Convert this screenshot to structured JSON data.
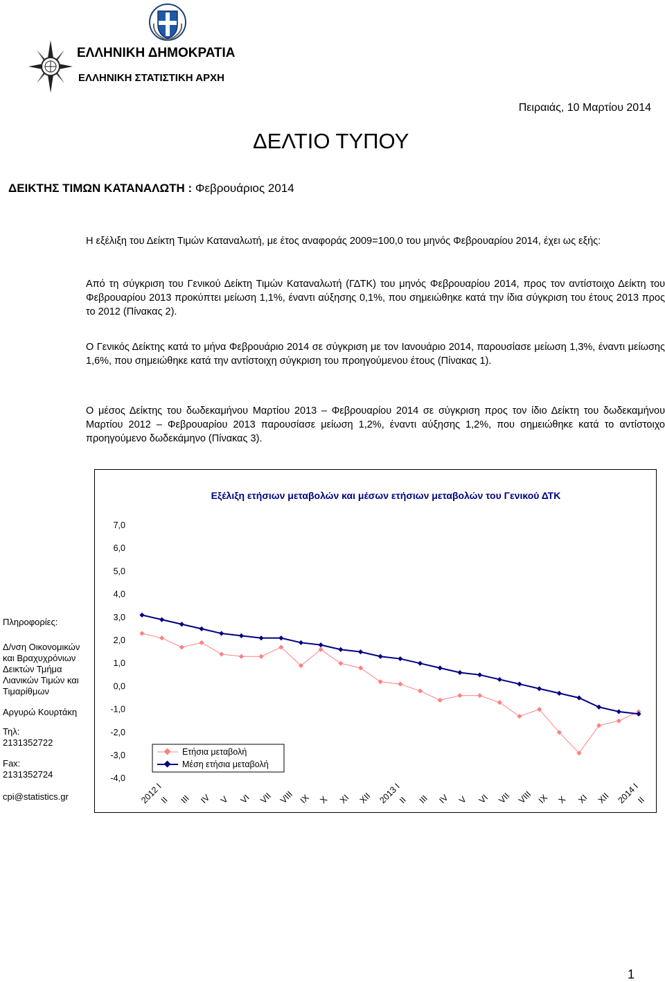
{
  "header": {
    "org_line1": "ΕΛΛΗΝΙΚΗ ΔΗΜΟΚΡΑΤΙΑ",
    "org_line2": "ΕΛΛΗΝΙΚΗ ΣΤΑΤΙΣΤΙΚΗ ΑΡΧΗ",
    "date": "Πειραιάς, 10 Μαρτίου 2014",
    "title": "ΔΕΛΤΙΟ ΤΥΠΟΥ",
    "subtitle_bold": "ΔΕΙΚΤΗΣ ΤΙΜΩΝ ΚΑΤΑΝΑΛΩΤΗ :",
    "subtitle_rest": "Φεβρουάριος 2014"
  },
  "body": {
    "p1": "Η εξέλιξη του Δείκτη Τιμών Καταναλωτή, με έτος αναφοράς 2009=100,0 του μηνός Φεβρουαρίου 2014, έχει ως εξής:",
    "p2": "Από τη σύγκριση του Γενικού Δείκτη Τιμών Καταναλωτή (ΓΔΤΚ) του μηνός Φεβρουαρίου 2014, προς τον αντίστοιχο Δείκτη του Φεβρουαρίου 2013 προκύπτει μείωση 1,1%, έναντι αύξησης 0,1%, που σημειώθηκε κατά την ίδια σύγκριση του έτους 2013 προς το 2012 (Πίνακας 2).",
    "p3": "Ο Γενικός Δείκτης κατά το μήνα Φεβρουάριο 2014 σε σύγκριση με τον Ιανουάριο 2014, παρουσίασε μείωση 1,3%, έναντι μείωσης 1,6%, που σημειώθηκε κατά την αντίστοιχη σύγκριση του προηγούμενου έτους (Πίνακας 1).",
    "p4": "Ο μέσος Δείκτης του δωδεκαμήνου Μαρτίου 2013 – Φεβρουαρίου 2014 σε σύγκριση προς τον ίδιο Δείκτη του δωδεκαμήνου Μαρτίου 2012 – Φεβρουαρίου 2013 παρουσίασε μείωση 1,2%, έναντι αύξησης 1,2%, που σημειώθηκε κατά το αντίστοιχο προηγούμενο δωδεκάμηνο (Πίνακας 3)."
  },
  "sidebar": {
    "info_label": "Πληροφορίες:",
    "department": "Δ/νση Οικονομικών και Βραχυχρόνιων Δεικτών Τμήμα Λιανικών Τιμών και Τιμαρίθμων",
    "contact_name": "Αργυρώ Κουρτάκη",
    "tel_label": "Τηλ:",
    "tel": "2131352722",
    "fax_label": "Fax:",
    "fax": "2131352724",
    "email": "cpi@statistics.gr"
  },
  "page_number": "1",
  "chart_data": {
    "type": "line",
    "title": "Εξέλιξη ετήσιων μεταβολών και μέσων ετήσιων μεταβολών του Γενικού ΔΤΚ",
    "categories": [
      "2012 I",
      "II",
      "III",
      "IV",
      "V",
      "VI",
      "VII",
      "VIII",
      "IX",
      "X",
      "XI",
      "XII",
      "2013 I",
      "II",
      "III",
      "IV",
      "V",
      "VI",
      "VII",
      "VIII",
      "IX",
      "X",
      "XI",
      "XII",
      "2014 I",
      "II"
    ],
    "y_tick_labels": [
      "7,0",
      "6,0",
      "5,0",
      "4,0",
      "3,0",
      "2,0",
      "1,0",
      "0,0",
      "-1,0",
      "-2,0",
      "-3,0",
      "-4,0"
    ],
    "ylim": [
      -4,
      7
    ],
    "legend_position": "bottom-left",
    "series": [
      {
        "name": "Ετήσια μεταβολή",
        "color": "#FF8080",
        "marker": "diamond",
        "values": [
          2.3,
          2.1,
          1.7,
          1.9,
          1.4,
          1.3,
          1.3,
          1.7,
          0.9,
          1.6,
          1.0,
          0.8,
          0.2,
          0.1,
          -0.2,
          -0.6,
          -0.4,
          -0.4,
          -0.7,
          -1.3,
          -1.0,
          -2.0,
          -2.9,
          -1.7,
          -1.5,
          -1.1
        ]
      },
      {
        "name": "Μέση ετήσια μεταβολή",
        "color": "#000080",
        "marker": "diamond",
        "values": [
          3.1,
          2.9,
          2.7,
          2.5,
          2.3,
          2.2,
          2.1,
          2.1,
          1.9,
          1.8,
          1.6,
          1.5,
          1.3,
          1.2,
          1.0,
          0.8,
          0.6,
          0.5,
          0.3,
          0.1,
          -0.1,
          -0.3,
          -0.5,
          -0.9,
          -1.1,
          -1.2
        ]
      }
    ]
  }
}
